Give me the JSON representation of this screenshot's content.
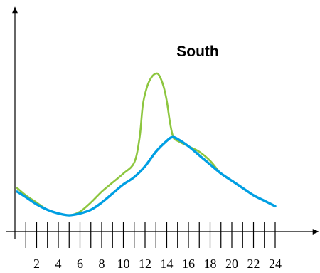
{
  "chart_data": {
    "type": "line",
    "title": "South",
    "xlabel": "",
    "ylabel": "",
    "xlim": [
      0,
      27
    ],
    "ylim": [
      0,
      100
    ],
    "x_ticks": [
      1,
      2,
      3,
      4,
      5,
      6,
      7,
      8,
      9,
      10,
      11,
      12,
      13,
      14,
      15,
      16,
      17,
      18,
      19,
      20,
      21,
      22,
      23,
      24
    ],
    "x_tick_labels": [
      "",
      "2",
      "",
      "4",
      "",
      "6",
      "",
      "8",
      "",
      "10",
      "",
      "12",
      "",
      "14",
      "",
      "16",
      "",
      "18",
      "",
      "20",
      "",
      "22",
      "",
      "24"
    ],
    "grid": false,
    "series": [
      {
        "color": "#8dc63f",
        "x": [
          0.2,
          1,
          2,
          3,
          4,
          5,
          6,
          7,
          8,
          9,
          10,
          11,
          11.5,
          11.8,
          12.2,
          12.6,
          13,
          13.3,
          13.7,
          14,
          14.3,
          14.6,
          15,
          16,
          17,
          18,
          19,
          20,
          21,
          22,
          23,
          24
        ],
        "values": [
          24,
          20,
          16,
          12,
          10,
          9,
          11,
          16,
          22,
          27,
          32,
          38,
          52,
          70,
          80,
          85,
          87,
          86,
          80,
          72,
          60,
          52,
          50,
          47,
          44,
          39,
          32,
          28,
          24,
          20,
          17,
          14
        ]
      },
      {
        "color": "#009fe3",
        "x": [
          0.2,
          1,
          2,
          3,
          4,
          5,
          6,
          7,
          8,
          9,
          10,
          11,
          12,
          13,
          14,
          14.5,
          15,
          16,
          17,
          18,
          19,
          20,
          21,
          22,
          23,
          24
        ],
        "values": [
          22,
          19,
          15,
          12,
          10,
          9,
          10,
          12,
          16,
          21,
          26,
          30,
          36,
          44,
          50,
          52,
          51,
          47,
          42,
          37,
          32,
          28,
          24,
          20,
          17,
          14
        ]
      }
    ]
  },
  "colors": {
    "axis": "#000000"
  }
}
